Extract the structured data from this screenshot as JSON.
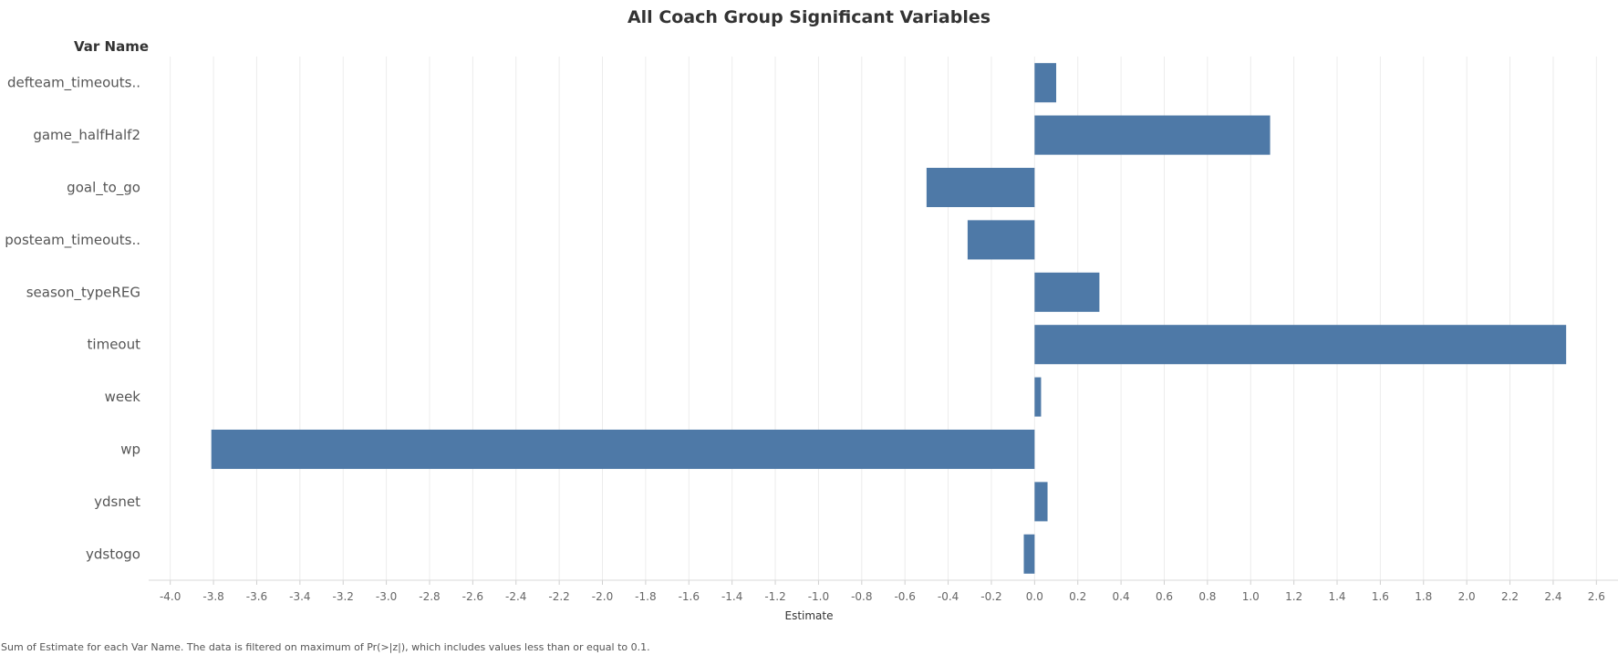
{
  "chart_data": {
    "type": "bar",
    "orientation": "horizontal",
    "title": "All Coach Group Significant Variables",
    "row_header": "Var Name",
    "xlabel": "Estimate",
    "categories": [
      "defteam_timeouts..",
      "game_halfHalf2",
      "goal_to_go",
      "posteam_timeouts..",
      "season_typeREG",
      "timeout",
      "week",
      "wp",
      "ydsnet",
      "ydstogo"
    ],
    "values": [
      0.1,
      1.09,
      -0.5,
      -0.31,
      0.3,
      2.46,
      0.03,
      -3.81,
      0.06,
      -0.05
    ],
    "xlim": [
      -4.1,
      2.7
    ],
    "xticks": [
      "-4.0",
      "-3.8",
      "-3.6",
      "-3.4",
      "-3.2",
      "-3.0",
      "-2.8",
      "-2.6",
      "-2.4",
      "-2.2",
      "-2.0",
      "-1.8",
      "-1.6",
      "-1.4",
      "-1.2",
      "-1.0",
      "-0.8",
      "-0.6",
      "-0.4",
      "-0.2",
      "0.0",
      "0.2",
      "0.4",
      "0.6",
      "0.8",
      "1.0",
      "1.2",
      "1.4",
      "1.6",
      "1.8",
      "2.0",
      "2.2",
      "2.4",
      "2.6"
    ],
    "grid": true,
    "bar_color": "#4e79a7",
    "footnote": "Sum of Estimate for each Var Name. The data is filtered on maximum of Pr(>|z|), which includes values less than or equal to 0.1."
  }
}
